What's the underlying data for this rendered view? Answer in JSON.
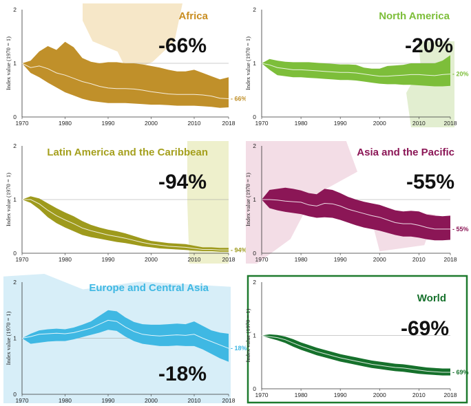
{
  "chart_data": [
    {
      "type": "area",
      "title": "Africa",
      "headline": "-66%",
      "end_label": "- 66%",
      "ylabel": "Index value (1970 = 1)",
      "color": "#C0902A",
      "x_ticks": [
        "1970",
        "1980",
        "1990",
        "2000",
        "2010",
        "2018"
      ],
      "y_ticks": [
        "0",
        "1",
        "2"
      ],
      "ylim": [
        0,
        2
      ],
      "xlim": [
        1970,
        2018
      ],
      "x": [
        1970,
        1972,
        1974,
        1976,
        1978,
        1980,
        1982,
        1984,
        1986,
        1988,
        1990,
        1992,
        1994,
        1996,
        1998,
        2000,
        2002,
        2004,
        2006,
        2008,
        2010,
        2012,
        2014,
        2016,
        2018
      ],
      "index": [
        1.0,
        0.92,
        0.95,
        0.9,
        0.82,
        0.78,
        0.72,
        0.66,
        0.62,
        0.57,
        0.54,
        0.53,
        0.53,
        0.52,
        0.5,
        0.47,
        0.45,
        0.43,
        0.42,
        0.42,
        0.42,
        0.41,
        0.39,
        0.35,
        0.34
      ],
      "upper": [
        1.0,
        1.05,
        1.22,
        1.32,
        1.25,
        1.4,
        1.3,
        1.1,
        1.03,
        1.0,
        1.02,
        1.02,
        1.0,
        1.0,
        0.98,
        0.95,
        0.92,
        0.88,
        0.85,
        0.85,
        0.88,
        0.82,
        0.76,
        0.7,
        0.74
      ],
      "lower": [
        1.0,
        0.82,
        0.74,
        0.64,
        0.55,
        0.46,
        0.4,
        0.34,
        0.3,
        0.28,
        0.26,
        0.26,
        0.26,
        0.25,
        0.24,
        0.23,
        0.23,
        0.22,
        0.21,
        0.21,
        0.21,
        0.2,
        0.19,
        0.17,
        0.18
      ]
    },
    {
      "type": "area",
      "title": "North America",
      "headline": "-20%",
      "end_label": "- 20%",
      "ylabel": "Index value (1970 = 1)",
      "color": "#7DBE3A",
      "x_ticks": [
        "1970",
        "1980",
        "1990",
        "2000",
        "2010",
        "2018"
      ],
      "y_ticks": [
        "0",
        "1",
        "2"
      ],
      "ylim": [
        0,
        2
      ],
      "xlim": [
        1970,
        2018
      ],
      "x": [
        1970,
        1972,
        1974,
        1976,
        1978,
        1980,
        1982,
        1984,
        1986,
        1988,
        1990,
        1992,
        1994,
        1996,
        1998,
        2000,
        2002,
        2004,
        2006,
        2008,
        2010,
        2012,
        2014,
        2016,
        2018
      ],
      "index": [
        1.0,
        0.97,
        0.92,
        0.9,
        0.88,
        0.88,
        0.87,
        0.86,
        0.85,
        0.84,
        0.83,
        0.83,
        0.82,
        0.8,
        0.78,
        0.76,
        0.76,
        0.77,
        0.78,
        0.79,
        0.79,
        0.78,
        0.77,
        0.79,
        0.8
      ],
      "upper": [
        1.0,
        1.08,
        1.05,
        1.03,
        1.02,
        1.02,
        1.02,
        1.01,
        1.0,
        0.99,
        0.98,
        0.98,
        0.97,
        0.92,
        0.9,
        0.9,
        0.95,
        0.96,
        0.97,
        1.0,
        1.0,
        1.0,
        1.0,
        1.05,
        1.15
      ],
      "lower": [
        1.0,
        0.88,
        0.78,
        0.76,
        0.74,
        0.74,
        0.73,
        0.72,
        0.71,
        0.7,
        0.69,
        0.69,
        0.68,
        0.66,
        0.64,
        0.62,
        0.61,
        0.61,
        0.6,
        0.6,
        0.59,
        0.58,
        0.57,
        0.57,
        0.58
      ]
    },
    {
      "type": "area",
      "title": "Latin America and the Caribbean",
      "headline": "-94%",
      "end_label": "- 94%",
      "ylabel": "Index value (1970 = 1)",
      "color": "#9E9A1C",
      "x_ticks": [
        "1970",
        "1980",
        "1990",
        "2000",
        "2010",
        "2018"
      ],
      "y_ticks": [
        "0",
        "1",
        "2"
      ],
      "ylim": [
        0,
        2
      ],
      "xlim": [
        1970,
        2018
      ],
      "x": [
        1970,
        1972,
        1974,
        1976,
        1978,
        1980,
        1982,
        1984,
        1986,
        1988,
        1990,
        1992,
        1994,
        1996,
        1998,
        2000,
        2002,
        2004,
        2006,
        2008,
        2010,
        2012,
        2014,
        2016,
        2018
      ],
      "index": [
        1.0,
        1.0,
        0.92,
        0.8,
        0.7,
        0.62,
        0.55,
        0.47,
        0.42,
        0.38,
        0.34,
        0.31,
        0.28,
        0.24,
        0.2,
        0.17,
        0.15,
        0.13,
        0.12,
        0.11,
        0.09,
        0.07,
        0.07,
        0.06,
        0.06
      ],
      "upper": [
        1.0,
        1.06,
        1.02,
        0.93,
        0.84,
        0.76,
        0.69,
        0.6,
        0.53,
        0.48,
        0.44,
        0.41,
        0.37,
        0.32,
        0.27,
        0.23,
        0.21,
        0.19,
        0.18,
        0.17,
        0.14,
        0.11,
        0.11,
        0.1,
        0.1
      ],
      "lower": [
        1.0,
        0.94,
        0.82,
        0.67,
        0.56,
        0.48,
        0.41,
        0.34,
        0.3,
        0.27,
        0.24,
        0.21,
        0.19,
        0.16,
        0.13,
        0.11,
        0.09,
        0.08,
        0.07,
        0.06,
        0.05,
        0.04,
        0.04,
        0.03,
        0.03
      ]
    },
    {
      "type": "area",
      "title": "Asia and the Pacific",
      "headline": "-55%",
      "end_label": "- 55%",
      "ylabel": "Index value (1970 = 1)",
      "color": "#8B1656",
      "x_ticks": [
        "1970",
        "1980",
        "1990",
        "2000",
        "2010",
        "2018"
      ],
      "y_ticks": [
        "0",
        "1",
        "2"
      ],
      "ylim": [
        0,
        2
      ],
      "xlim": [
        1970,
        2018
      ],
      "x": [
        1970,
        1972,
        1974,
        1976,
        1978,
        1980,
        1982,
        1984,
        1986,
        1988,
        1990,
        1992,
        1994,
        1996,
        1998,
        2000,
        2002,
        2004,
        2006,
        2008,
        2010,
        2012,
        2014,
        2016,
        2018
      ],
      "index": [
        1.0,
        1.0,
        0.99,
        0.97,
        0.96,
        0.95,
        0.9,
        0.88,
        0.93,
        0.92,
        0.88,
        0.82,
        0.78,
        0.74,
        0.7,
        0.67,
        0.62,
        0.57,
        0.55,
        0.55,
        0.52,
        0.48,
        0.45,
        0.45,
        0.45
      ],
      "upper": [
        1.0,
        1.18,
        1.2,
        1.22,
        1.2,
        1.17,
        1.12,
        1.1,
        1.2,
        1.18,
        1.12,
        1.05,
        1.0,
        0.96,
        0.93,
        0.9,
        0.85,
        0.8,
        0.78,
        0.79,
        0.78,
        0.72,
        0.7,
        0.69,
        0.7
      ],
      "lower": [
        1.0,
        0.84,
        0.8,
        0.77,
        0.75,
        0.73,
        0.69,
        0.66,
        0.67,
        0.66,
        0.62,
        0.57,
        0.52,
        0.48,
        0.45,
        0.42,
        0.38,
        0.34,
        0.31,
        0.31,
        0.29,
        0.26,
        0.24,
        0.24,
        0.25
      ]
    },
    {
      "type": "area",
      "title": "Europe and Central Asia",
      "headline": "-18%",
      "end_label": "- 18%",
      "ylabel": "Index value (1970 = 1)",
      "color": "#3FB8E3",
      "x_ticks": [
        "1970",
        "1980",
        "1990",
        "2000",
        "2010",
        "2018"
      ],
      "y_ticks": [
        "0",
        "1",
        "2"
      ],
      "ylim": [
        0,
        2
      ],
      "xlim": [
        1970,
        2018
      ],
      "x": [
        1970,
        1972,
        1974,
        1976,
        1978,
        1980,
        1982,
        1984,
        1986,
        1988,
        1990,
        1992,
        1994,
        1996,
        1998,
        2000,
        2002,
        2004,
        2006,
        2008,
        2010,
        2012,
        2014,
        2016,
        2018
      ],
      "index": [
        1.0,
        1.03,
        1.07,
        1.08,
        1.09,
        1.08,
        1.1,
        1.14,
        1.18,
        1.25,
        1.32,
        1.3,
        1.2,
        1.12,
        1.07,
        1.05,
        1.04,
        1.05,
        1.06,
        1.05,
        1.07,
        1.0,
        0.94,
        0.88,
        0.82
      ],
      "upper": [
        1.0,
        1.08,
        1.14,
        1.16,
        1.17,
        1.16,
        1.19,
        1.24,
        1.3,
        1.4,
        1.5,
        1.48,
        1.37,
        1.29,
        1.25,
        1.24,
        1.24,
        1.25,
        1.26,
        1.25,
        1.3,
        1.22,
        1.14,
        1.1,
        1.08
      ],
      "lower": [
        1.0,
        0.9,
        0.92,
        0.94,
        0.95,
        0.95,
        0.98,
        1.02,
        1.06,
        1.1,
        1.15,
        1.13,
        1.03,
        0.95,
        0.9,
        0.88,
        0.86,
        0.86,
        0.87,
        0.86,
        0.86,
        0.8,
        0.72,
        0.64,
        0.58
      ]
    },
    {
      "type": "area",
      "title": "World",
      "headline": "-69%",
      "end_label": "- 69%",
      "ylabel": "Index value (1970 = 1)",
      "color": "#16712C",
      "x_ticks": [
        "1970",
        "1980",
        "1990",
        "2000",
        "2010",
        "2018"
      ],
      "y_ticks": [
        "0",
        "1",
        "2"
      ],
      "ylim": [
        0,
        2
      ],
      "xlim": [
        1970,
        2018
      ],
      "x": [
        1970,
        1972,
        1974,
        1976,
        1978,
        1980,
        1982,
        1984,
        1986,
        1988,
        1990,
        1992,
        1994,
        1996,
        1998,
        2000,
        2002,
        2004,
        2006,
        2008,
        2010,
        2012,
        2014,
        2016,
        2018
      ],
      "index": [
        1.0,
        0.98,
        0.96,
        0.92,
        0.86,
        0.8,
        0.75,
        0.7,
        0.66,
        0.62,
        0.58,
        0.55,
        0.52,
        0.49,
        0.46,
        0.44,
        0.42,
        0.4,
        0.39,
        0.37,
        0.35,
        0.33,
        0.32,
        0.31,
        0.31
      ],
      "upper": [
        1.0,
        1.02,
        1.01,
        0.98,
        0.93,
        0.87,
        0.82,
        0.77,
        0.73,
        0.69,
        0.65,
        0.62,
        0.59,
        0.56,
        0.53,
        0.51,
        0.49,
        0.47,
        0.46,
        0.44,
        0.42,
        0.4,
        0.39,
        0.38,
        0.38
      ],
      "lower": [
        1.0,
        0.95,
        0.91,
        0.86,
        0.79,
        0.73,
        0.68,
        0.63,
        0.59,
        0.55,
        0.51,
        0.48,
        0.45,
        0.42,
        0.39,
        0.37,
        0.35,
        0.33,
        0.32,
        0.3,
        0.28,
        0.27,
        0.26,
        0.25,
        0.25
      ]
    }
  ],
  "panel_styles": [
    {
      "title_color": "#C98E22",
      "map_color": "#F6E7C8",
      "frame": "#ffffff"
    },
    {
      "title_color": "#7DBE3A",
      "map_color": "#E2EED0",
      "frame": "#ffffff"
    },
    {
      "title_color": "#A5A01E",
      "map_color": "#EEF0CC",
      "frame": "#ffffff"
    },
    {
      "title_color": "#8B1656",
      "map_color": "#F3DDE6",
      "frame": "#ffffff"
    },
    {
      "title_color": "#3FB8E3",
      "map_color": "#D7EEF8",
      "frame": "#ffffff"
    },
    {
      "title_color": "#16712C",
      "map_color": "#ffffff",
      "frame": "#1E7A2E"
    }
  ]
}
